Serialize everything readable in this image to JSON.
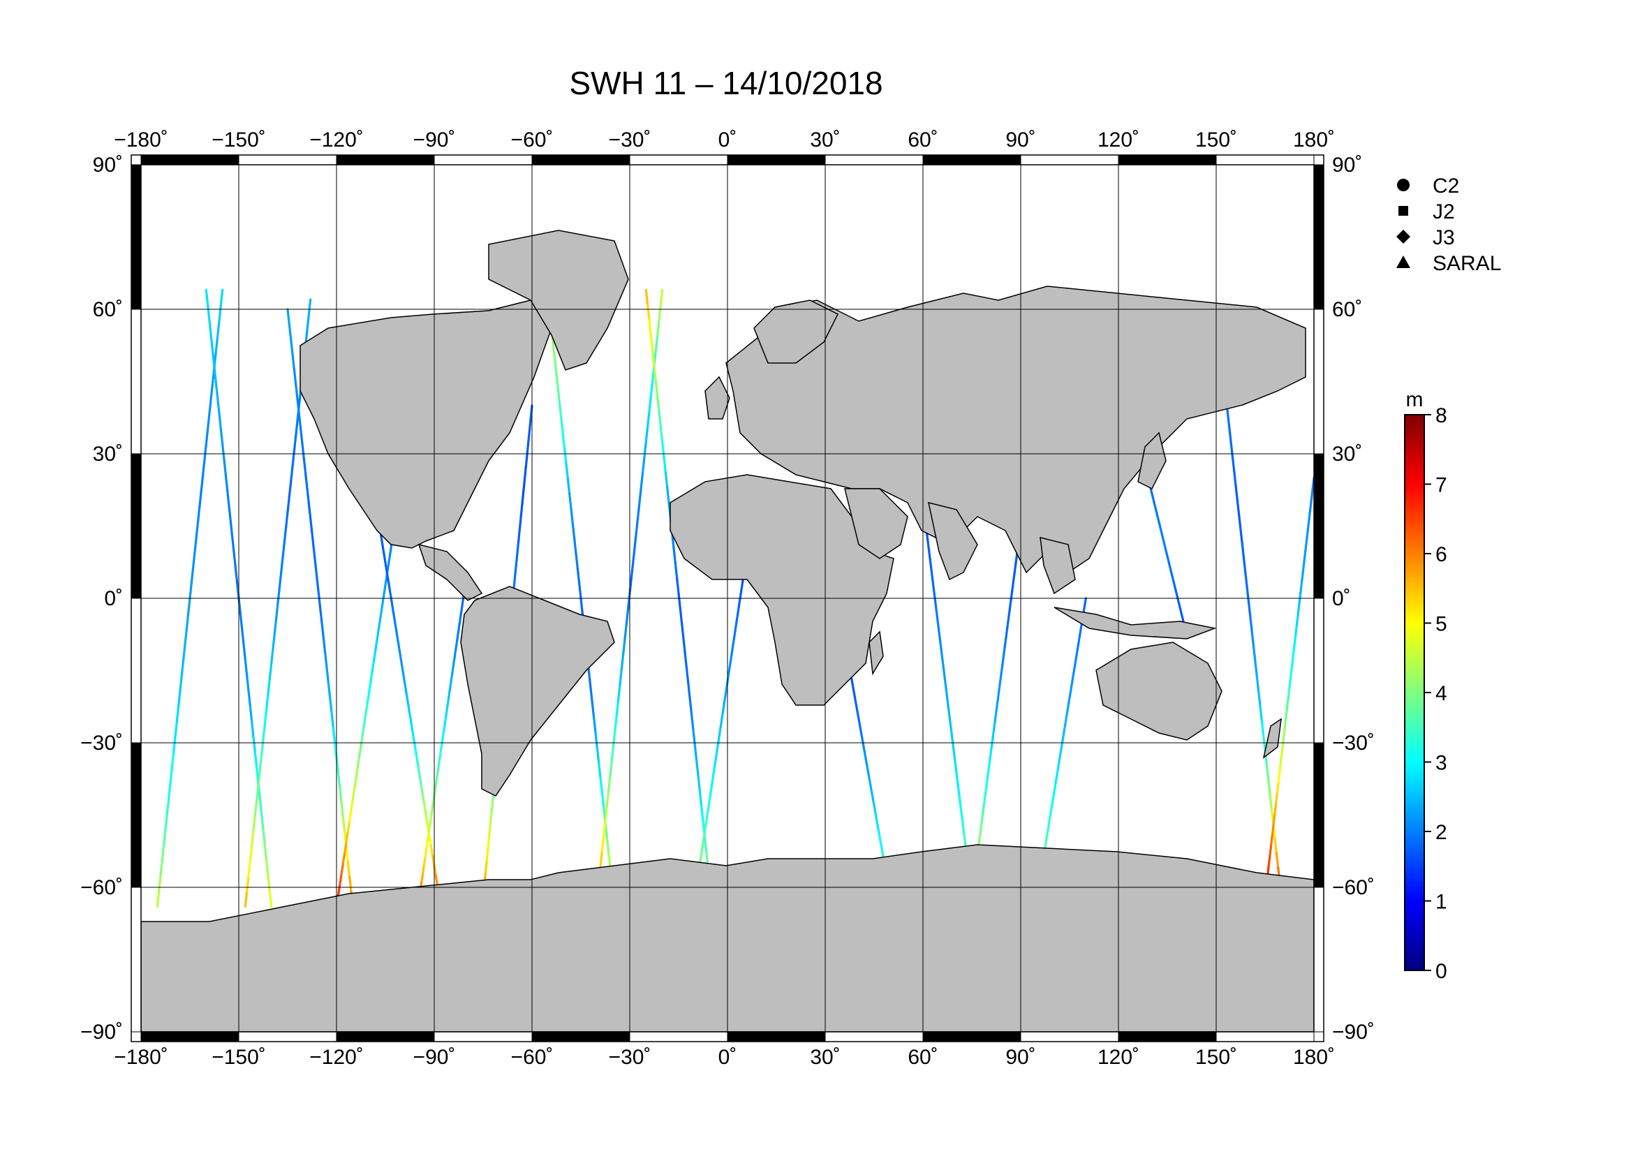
{
  "title": "SWH 11 – 14/10/2018",
  "axes": {
    "lon_ticks": [
      -180,
      -150,
      -120,
      -90,
      -60,
      -30,
      0,
      30,
      60,
      90,
      120,
      150,
      180
    ],
    "lat_ticks": [
      90,
      60,
      30,
      0,
      -30,
      -60,
      -90
    ],
    "lon_labels": [
      "−180˚",
      "−150˚",
      "−120˚",
      "−90˚",
      "−60˚",
      "−30˚",
      "0˚",
      "30˚",
      "60˚",
      "90˚",
      "120˚",
      "150˚",
      "180˚"
    ],
    "lat_labels": [
      "90˚",
      "60˚",
      "30˚",
      "0˚",
      "−30˚",
      "−60˚",
      "−90˚"
    ],
    "xlim": [
      -180,
      180
    ],
    "ylim": [
      -90,
      90
    ],
    "projection": "equirectangular",
    "grid": true
  },
  "legend": {
    "items": [
      {
        "marker": "circle",
        "label": "C2"
      },
      {
        "marker": "square",
        "label": "J2"
      },
      {
        "marker": "diamond",
        "label": "J3"
      },
      {
        "marker": "triangle",
        "label": "SARAL"
      }
    ]
  },
  "colorbar": {
    "unit": "m",
    "min": 0,
    "max": 8,
    "ticks": [
      0,
      1,
      2,
      3,
      4,
      5,
      6,
      7,
      8
    ],
    "colormap": [
      "#00007f",
      "#0000ff",
      "#007fff",
      "#00ffff",
      "#7fff7f",
      "#ffff00",
      "#ff7f00",
      "#ff0000",
      "#7f0000"
    ]
  },
  "colors": {
    "land": "#bebebe",
    "ocean": "#ffffff",
    "frame": "#000000"
  },
  "chart_data": {
    "type": "scatter",
    "title": "SWH 11 – 14/10/2018",
    "variable": "SWH",
    "unit": "m",
    "series_note_tracks": [
      {
        "lon0": -175,
        "lat0": -64,
        "lon1": -155,
        "lat1": 64,
        "swh": [
          4.5,
          3.2,
          2.6,
          2.2,
          2.0,
          2.2,
          2.8
        ]
      },
      {
        "lon0": -160,
        "lat0": 64,
        "lon1": -140,
        "lat1": -64,
        "swh": [
          2.8,
          2.4,
          2.0,
          1.9,
          2.3,
          3.5,
          5.0
        ]
      },
      {
        "lon0": -148,
        "lat0": -64,
        "lon1": -128,
        "lat1": 62,
        "swh": [
          5.5,
          4.0,
          2.8,
          2.1,
          1.8,
          2.0,
          2.5
        ]
      },
      {
        "lon0": -135,
        "lat0": 60,
        "lon1": -115,
        "lat1": -64,
        "swh": [
          2.3,
          2.0,
          1.8,
          1.9,
          2.5,
          4.2,
          6.2
        ]
      },
      {
        "lon0": -120,
        "lat0": -64,
        "lon1": -100,
        "lat1": 25,
        "swh": [
          6.8,
          4.6,
          3.0,
          2.2,
          1.7
        ]
      },
      {
        "lon0": -108,
        "lat0": 20,
        "lon1": -88,
        "lat1": -64,
        "swh": [
          1.6,
          1.8,
          2.2,
          3.0,
          4.8,
          6.5
        ]
      },
      {
        "lon0": -95,
        "lat0": -64,
        "lon1": -80,
        "lat1": 5,
        "swh": [
          6.2,
          4.4,
          3.0,
          2.1,
          1.7
        ]
      },
      {
        "lon0": -75,
        "lat0": -62,
        "lon1": -60,
        "lat1": 40,
        "swh": [
          5.8,
          4.0,
          2.8,
          2.0,
          1.6,
          1.8
        ]
      },
      {
        "lon0": -55,
        "lat0": 62,
        "lon1": -35,
        "lat1": -62,
        "swh": [
          4.5,
          3.6,
          2.2,
          1.8,
          2.0,
          3.2,
          5.4
        ]
      },
      {
        "lon0": -40,
        "lat0": -62,
        "lon1": -20,
        "lat1": 64,
        "swh": [
          5.9,
          4.1,
          2.6,
          1.8,
          2.1,
          3.0,
          4.8
        ]
      },
      {
        "lon0": -25,
        "lat0": 64,
        "lon1": -5,
        "lat1": -62,
        "swh": [
          5.5,
          4.0,
          2.3,
          1.7,
          1.9,
          2.8,
          4.6
        ]
      },
      {
        "lon0": -10,
        "lat0": -62,
        "lon1": 5,
        "lat1": 5,
        "swh": [
          4.4,
          3.0,
          2.2,
          1.6
        ]
      },
      {
        "lon0": 35,
        "lat0": -5,
        "lon1": 50,
        "lat1": -62,
        "swh": [
          1.5,
          1.8,
          2.6,
          3.8
        ]
      },
      {
        "lon0": 60,
        "lat0": 20,
        "lon1": 75,
        "lat1": -62,
        "swh": [
          1.6,
          1.9,
          2.4,
          3.0,
          4.2
        ]
      },
      {
        "lon0": 75,
        "lat0": -62,
        "lon1": 90,
        "lat1": 15,
        "swh": [
          5.0,
          3.4,
          2.3,
          1.8,
          1.6
        ]
      },
      {
        "lon0": 95,
        "lat0": -62,
        "lon1": 110,
        "lat1": 0,
        "swh": [
          4.2,
          3.0,
          2.2,
          1.8
        ]
      },
      {
        "lon0": 120,
        "lat0": 50,
        "lon1": 140,
        "lat1": -5,
        "swh": [
          1.5,
          1.8,
          2.0,
          1.7
        ]
      },
      {
        "lon0": 150,
        "lat0": 60,
        "lon1": 170,
        "lat1": -62,
        "swh": [
          2.2,
          1.9,
          1.7,
          1.9,
          2.6,
          4.4,
          6.8
        ]
      },
      {
        "lon0": 165,
        "lat0": -62,
        "lon1": 180,
        "lat1": 25,
        "swh": [
          7.0,
          5.2,
          3.3,
          2.3,
          2.0
        ]
      }
    ]
  }
}
